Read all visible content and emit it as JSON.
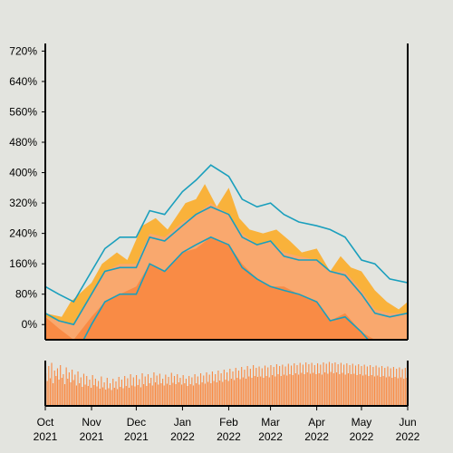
{
  "chart_data": {
    "type": "area",
    "title": "",
    "xlabel": "",
    "ylabel": "",
    "ylim": [
      -40,
      740
    ],
    "y_ticks": [
      "0%",
      "80%",
      "160%",
      "240%",
      "320%",
      "400%",
      "480%",
      "560%",
      "640%",
      "720%"
    ],
    "y_tick_values": [
      0,
      80,
      160,
      240,
      320,
      400,
      480,
      560,
      640,
      720
    ],
    "x_ticks": [
      {
        "month": "Oct",
        "year": "2021",
        "date": "2021-10-01"
      },
      {
        "month": "Nov",
        "year": "2021",
        "date": "2021-11-01"
      },
      {
        "month": "Dec",
        "year": "2021",
        "date": "2021-12-01"
      },
      {
        "month": "Jan",
        "year": "2022",
        "date": "2022-01-01"
      },
      {
        "month": "Feb",
        "year": "2022",
        "date": "2022-02-01"
      },
      {
        "month": "Mar",
        "year": "2022",
        "date": "2022-03-01"
      },
      {
        "month": "Apr",
        "year": "2022",
        "date": "2022-04-01"
      },
      {
        "month": "May",
        "year": "2022",
        "date": "2022-05-01"
      },
      {
        "month": "Jun",
        "year": "2022",
        "date": "2022-06-01"
      }
    ],
    "xlim": [
      "2021-10-01",
      "2022-06-01"
    ],
    "grid": false,
    "colors": {
      "background": "#e3e4df",
      "outer_band": "#e3e4df",
      "band": "#f9a86e",
      "median": "#f98b45",
      "raw": "#f9b23b",
      "line": "#1a9fbd",
      "volume": "#f98b45"
    },
    "series": [
      {
        "kind": "median-area",
        "points": [
          [
            "2021-10-01",
            20
          ],
          [
            "2021-10-10",
            -10
          ],
          [
            "2021-10-20",
            -40
          ],
          [
            "2021-11-01",
            20
          ],
          [
            "2021-11-10",
            60
          ],
          [
            "2021-11-20",
            80
          ],
          [
            "2021-12-01",
            100
          ],
          [
            "2021-12-10",
            160
          ],
          [
            "2021-12-20",
            140
          ],
          [
            "2022-01-01",
            190
          ],
          [
            "2022-01-10",
            200
          ],
          [
            "2022-01-20",
            230
          ],
          [
            "2022-02-01",
            210
          ],
          [
            "2022-02-10",
            160
          ],
          [
            "2022-02-20",
            120
          ],
          [
            "2022-03-01",
            100
          ],
          [
            "2022-03-10",
            100
          ],
          [
            "2022-03-20",
            80
          ],
          [
            "2022-04-01",
            60
          ],
          [
            "2022-04-10",
            10
          ],
          [
            "2022-04-20",
            30
          ],
          [
            "2022-05-01",
            -20
          ],
          [
            "2022-05-10",
            -40
          ],
          [
            "2022-05-20",
            -40
          ],
          [
            "2022-06-01",
            -40
          ]
        ]
      },
      {
        "kind": "band-area",
        "upper": [
          [
            "2021-10-01",
            20
          ],
          [
            "2021-10-10",
            10
          ],
          [
            "2021-10-20",
            0
          ],
          [
            "2021-11-01",
            80
          ],
          [
            "2021-11-10",
            140
          ],
          [
            "2021-11-20",
            160
          ],
          [
            "2021-12-01",
            160
          ],
          [
            "2021-12-10",
            240
          ],
          [
            "2021-12-20",
            230
          ],
          [
            "2022-01-01",
            270
          ],
          [
            "2022-01-10",
            290
          ],
          [
            "2022-01-20",
            320
          ],
          [
            "2022-02-01",
            290
          ],
          [
            "2022-02-10",
            240
          ],
          [
            "2022-02-20",
            210
          ],
          [
            "2022-03-01",
            220
          ],
          [
            "2022-03-10",
            190
          ],
          [
            "2022-03-20",
            180
          ],
          [
            "2022-04-01",
            170
          ],
          [
            "2022-04-10",
            140
          ],
          [
            "2022-04-20",
            140
          ],
          [
            "2022-05-01",
            90
          ],
          [
            "2022-05-10",
            40
          ],
          [
            "2022-05-20",
            30
          ],
          [
            "2022-06-01",
            30
          ]
        ]
      },
      {
        "kind": "raw-spikes",
        "points": [
          [
            "2021-10-01",
            30
          ],
          [
            "2021-10-12",
            20
          ],
          [
            "2021-10-18",
            60
          ],
          [
            "2021-11-01",
            110
          ],
          [
            "2021-11-08",
            160
          ],
          [
            "2021-11-18",
            190
          ],
          [
            "2021-11-25",
            170
          ],
          [
            "2021-12-05",
            260
          ],
          [
            "2021-12-14",
            280
          ],
          [
            "2021-12-22",
            250
          ],
          [
            "2022-01-03",
            320
          ],
          [
            "2022-01-10",
            330
          ],
          [
            "2022-01-16",
            370
          ],
          [
            "2022-01-24",
            310
          ],
          [
            "2022-02-01",
            360
          ],
          [
            "2022-02-08",
            280
          ],
          [
            "2022-02-15",
            250
          ],
          [
            "2022-02-24",
            240
          ],
          [
            "2022-03-05",
            250
          ],
          [
            "2022-03-14",
            220
          ],
          [
            "2022-03-22",
            190
          ],
          [
            "2022-04-01",
            200
          ],
          [
            "2022-04-10",
            140
          ],
          [
            "2022-04-17",
            180
          ],
          [
            "2022-04-24",
            150
          ],
          [
            "2022-05-01",
            140
          ],
          [
            "2022-05-10",
            90
          ],
          [
            "2022-05-18",
            60
          ],
          [
            "2022-05-26",
            40
          ],
          [
            "2022-06-01",
            60
          ]
        ]
      },
      {
        "kind": "upper-line",
        "points": [
          [
            "2021-10-01",
            100
          ],
          [
            "2021-10-10",
            80
          ],
          [
            "2021-10-20",
            60
          ],
          [
            "2021-11-01",
            140
          ],
          [
            "2021-11-10",
            200
          ],
          [
            "2021-11-20",
            230
          ],
          [
            "2021-12-01",
            230
          ],
          [
            "2021-12-10",
            300
          ],
          [
            "2021-12-20",
            290
          ],
          [
            "2022-01-01",
            350
          ],
          [
            "2022-01-10",
            380
          ],
          [
            "2022-01-20",
            420
          ],
          [
            "2022-02-01",
            390
          ],
          [
            "2022-02-10",
            330
          ],
          [
            "2022-02-20",
            310
          ],
          [
            "2022-03-01",
            320
          ],
          [
            "2022-03-10",
            290
          ],
          [
            "2022-03-20",
            270
          ],
          [
            "2022-04-01",
            260
          ],
          [
            "2022-04-10",
            250
          ],
          [
            "2022-04-20",
            230
          ],
          [
            "2022-05-01",
            170
          ],
          [
            "2022-05-10",
            160
          ],
          [
            "2022-05-20",
            120
          ],
          [
            "2022-06-01",
            110
          ]
        ]
      },
      {
        "kind": "mid-line",
        "points": [
          [
            "2021-10-01",
            30
          ],
          [
            "2021-10-10",
            10
          ],
          [
            "2021-10-20",
            0
          ],
          [
            "2021-11-01",
            80
          ],
          [
            "2021-11-10",
            140
          ],
          [
            "2021-11-20",
            150
          ],
          [
            "2021-12-01",
            150
          ],
          [
            "2021-12-10",
            230
          ],
          [
            "2021-12-20",
            220
          ],
          [
            "2022-01-01",
            260
          ],
          [
            "2022-01-10",
            290
          ],
          [
            "2022-01-20",
            310
          ],
          [
            "2022-02-01",
            290
          ],
          [
            "2022-02-10",
            230
          ],
          [
            "2022-02-20",
            210
          ],
          [
            "2022-03-01",
            220
          ],
          [
            "2022-03-10",
            180
          ],
          [
            "2022-03-20",
            170
          ],
          [
            "2022-04-01",
            170
          ],
          [
            "2022-04-10",
            140
          ],
          [
            "2022-04-20",
            130
          ],
          [
            "2022-05-01",
            80
          ],
          [
            "2022-05-10",
            30
          ],
          [
            "2022-05-20",
            20
          ],
          [
            "2022-06-01",
            30
          ]
        ]
      },
      {
        "kind": "lower-line",
        "points": [
          [
            "2021-10-01",
            -60
          ],
          [
            "2021-10-10",
            -80
          ],
          [
            "2021-10-20",
            -90
          ],
          [
            "2021-11-01",
            0
          ],
          [
            "2021-11-10",
            60
          ],
          [
            "2021-11-20",
            80
          ],
          [
            "2021-12-01",
            80
          ],
          [
            "2021-12-10",
            160
          ],
          [
            "2021-12-20",
            140
          ],
          [
            "2022-01-01",
            190
          ],
          [
            "2022-01-10",
            210
          ],
          [
            "2022-01-20",
            230
          ],
          [
            "2022-02-01",
            210
          ],
          [
            "2022-02-10",
            150
          ],
          [
            "2022-02-20",
            120
          ],
          [
            "2022-03-01",
            100
          ],
          [
            "2022-03-10",
            90
          ],
          [
            "2022-03-20",
            80
          ],
          [
            "2022-04-01",
            60
          ],
          [
            "2022-04-10",
            10
          ],
          [
            "2022-04-20",
            20
          ],
          [
            "2022-05-01",
            -20
          ],
          [
            "2022-05-10",
            -60
          ],
          [
            "2022-05-20",
            -70
          ],
          [
            "2022-06-01",
            -70
          ]
        ]
      }
    ],
    "volume": {
      "type": "bar",
      "range": [
        0,
        1
      ],
      "bars_per_day": 1,
      "values": [
        0.72,
        0.55,
        0.88,
        0.61,
        0.95,
        0.5,
        0.78,
        0.66,
        0.83,
        0.58,
        0.9,
        0.62,
        0.7,
        0.48,
        0.85,
        0.6,
        0.74,
        0.52,
        0.8,
        0.57,
        0.69,
        0.45,
        0.76,
        0.5,
        0.63,
        0.42,
        0.71,
        0.47,
        0.66,
        0.44,
        0.58,
        0.4,
        0.68,
        0.46,
        0.6,
        0.43,
        0.55,
        0.38,
        0.65,
        0.41,
        0.52,
        0.36,
        0.62,
        0.39,
        0.5,
        0.35,
        0.6,
        0.4,
        0.54,
        0.37,
        0.64,
        0.42,
        0.58,
        0.39,
        0.66,
        0.44,
        0.61,
        0.4,
        0.7,
        0.45,
        0.63,
        0.43,
        0.68,
        0.46,
        0.59,
        0.41,
        0.72,
        0.48,
        0.65,
        0.44,
        0.7,
        0.5,
        0.62,
        0.45,
        0.74,
        0.52,
        0.67,
        0.47,
        0.71,
        0.5,
        0.6,
        0.45,
        0.69,
        0.49,
        0.64,
        0.46,
        0.73,
        0.51,
        0.66,
        0.48,
        0.7,
        0.52,
        0.62,
        0.47,
        0.68,
        0.5,
        0.6,
        0.44,
        0.66,
        0.48,
        0.63,
        0.45,
        0.7,
        0.5,
        0.65,
        0.47,
        0.72,
        0.52,
        0.67,
        0.49,
        0.74,
        0.53,
        0.69,
        0.5,
        0.76,
        0.55,
        0.7,
        0.52,
        0.78,
        0.56,
        0.72,
        0.53,
        0.8,
        0.58,
        0.74,
        0.55,
        0.82,
        0.6,
        0.76,
        0.57,
        0.84,
        0.62,
        0.78,
        0.59,
        0.86,
        0.63,
        0.8,
        0.6,
        0.88,
        0.65,
        0.82,
        0.62,
        0.9,
        0.66,
        0.84,
        0.64,
        0.87,
        0.65,
        0.83,
        0.62,
        0.89,
        0.66,
        0.85,
        0.63,
        0.9,
        0.68,
        0.86,
        0.65,
        0.92,
        0.7,
        0.88,
        0.66,
        0.91,
        0.69,
        0.87,
        0.67,
        0.93,
        0.7,
        0.89,
        0.68,
        0.94,
        0.72,
        0.9,
        0.69,
        0.95,
        0.73,
        0.91,
        0.7,
        0.96,
        0.74,
        0.92,
        0.71,
        0.95,
        0.73,
        0.9,
        0.7,
        0.94,
        0.72,
        0.91,
        0.69,
        0.96,
        0.74,
        0.93,
        0.71,
        0.97,
        0.75,
        0.94,
        0.72,
        0.96,
        0.74,
        0.92,
        0.7,
        0.95,
        0.73,
        0.91,
        0.69,
        0.94,
        0.72,
        0.9,
        0.7,
        0.93,
        0.71,
        0.89,
        0.68,
        0.92,
        0.7,
        0.88,
        0.67,
        0.91,
        0.69,
        0.87,
        0.66,
        0.9,
        0.68,
        0.86,
        0.65,
        0.89,
        0.67,
        0.85,
        0.64,
        0.88,
        0.66,
        0.84,
        0.63,
        0.87,
        0.65,
        0.83,
        0.62,
        0.86,
        0.64,
        0.82,
        0.61,
        0.85,
        0.63,
        0.81,
        0.6,
        0.84,
        0.62
      ]
    }
  }
}
